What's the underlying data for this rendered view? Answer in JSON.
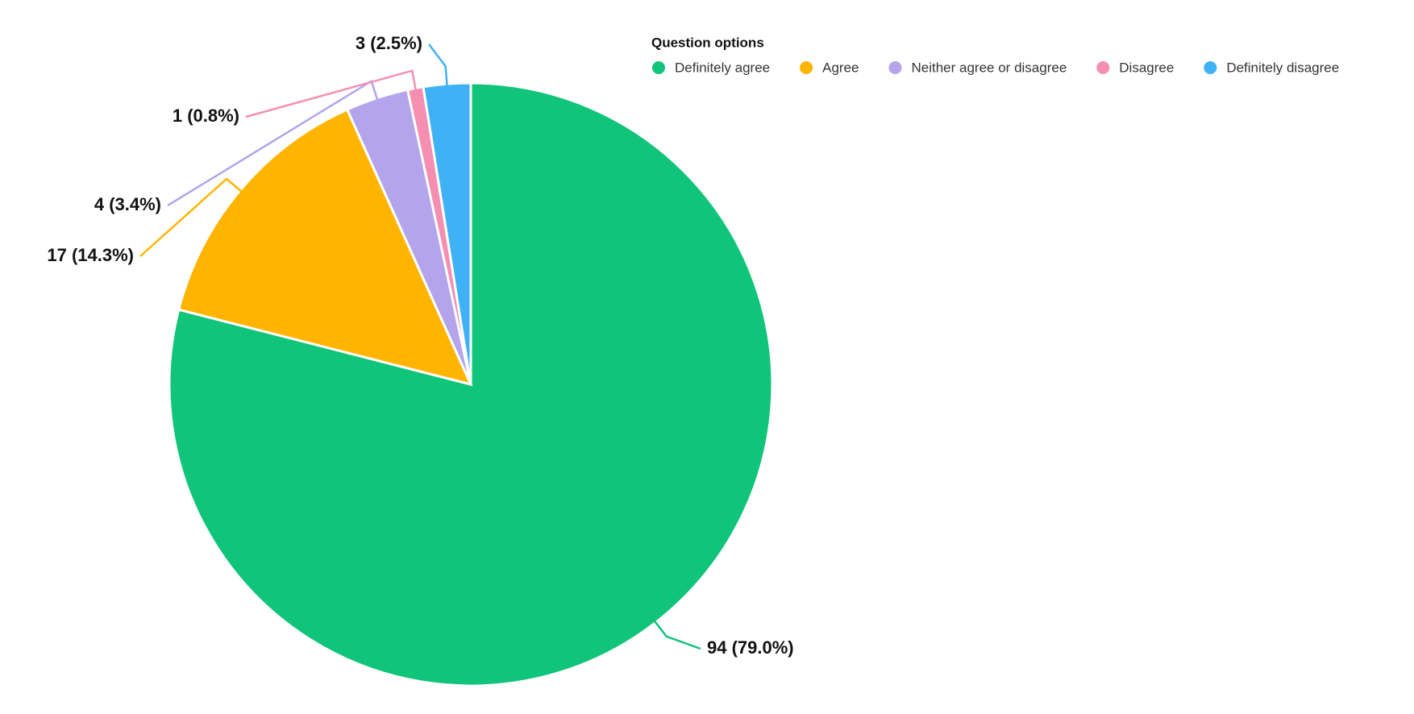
{
  "chart_data": {
    "type": "pie",
    "legend_title": "Question options",
    "legend": "top-right",
    "categories": [
      "Definitely agree",
      "Agree",
      "Neither agree or disagree",
      "Disagree",
      "Definitely disagree"
    ],
    "values": [
      94,
      17,
      4,
      1,
      3
    ],
    "value_labels": [
      "94 (79.0%)",
      "17 (14.3%)",
      "4 (3.4%)",
      "1 (0.8%)",
      "3 (2.5%)"
    ],
    "colors": [
      "#10c47a",
      "#ffb400",
      "#b3a4ec",
      "#f48fb1",
      "#3fb2f5"
    ]
  }
}
